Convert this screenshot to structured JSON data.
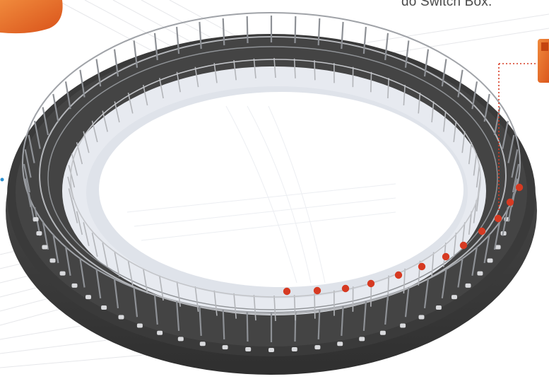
{
  "caption": "do Switch Box.",
  "colors": {
    "marker": "#d63a22",
    "leader_line": "#d63a22",
    "left_pointer": "#2b8fcf",
    "orange_accent": "#e8621e",
    "deck": "#3a3a3a",
    "base_side": "#4a4a4a",
    "inner_wall": "#e7eaf0",
    "railing": "#9a9da2"
  },
  "icons": [
    "orange-device-icon",
    "switch-box-icon"
  ]
}
